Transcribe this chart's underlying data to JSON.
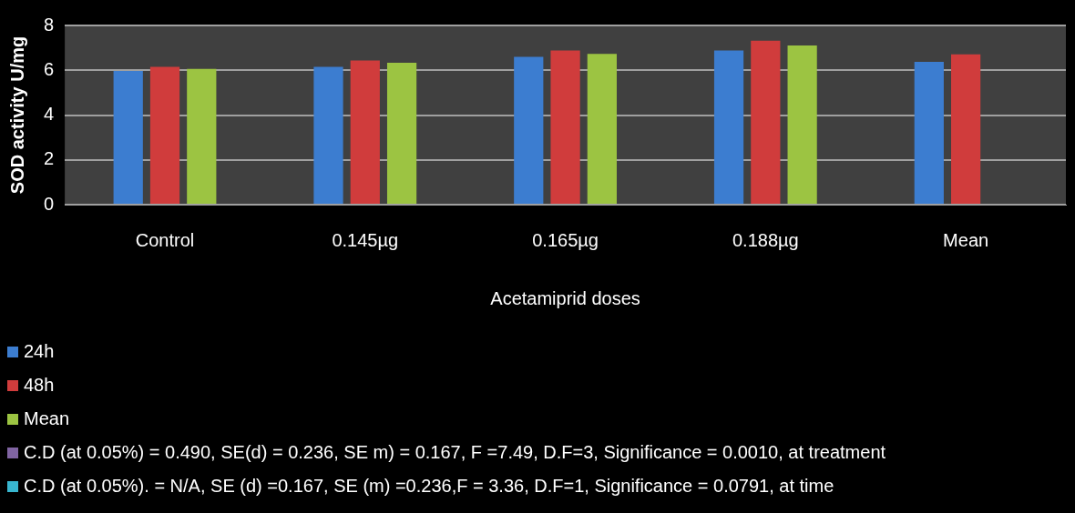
{
  "chart_data": {
    "type": "bar",
    "xlabel": "Acetamiprid doses",
    "ylabel": "SOD activity U/mg",
    "categories": [
      "Control",
      "0.145µg",
      "0.165µg",
      "0.188µg",
      "Mean"
    ],
    "ylim": [
      0,
      8
    ],
    "yticks": [
      0,
      2,
      4,
      6,
      8
    ],
    "grid": "y",
    "legend": "bottom",
    "series": [
      {
        "name": "24h",
        "color": "#3c7dd0",
        "values": [
          5.97,
          6.15,
          6.6,
          6.88,
          6.38
        ]
      },
      {
        "name": "48h",
        "color": "#d03c3c",
        "values": [
          6.15,
          6.44,
          6.88,
          7.32,
          6.71
        ]
      },
      {
        "name": "Mean",
        "color": "#9cc442",
        "values": [
          6.06,
          6.33,
          6.73,
          7.11,
          null
        ]
      },
      {
        "name": "C.D (at 0.05%) = 0.490, SE(d) = 0.236, SE m) = 0.167, F =7.49, D.F=3, Significance = 0.0010, at treatment",
        "color": "#8064a2",
        "values": [
          null,
          null,
          null,
          null,
          null
        ]
      },
      {
        "name": "C.D (at 0.05%). = N/A, SE (d) =0.167, SE (m) =0.236,F = 3.36, D.F=1, Significance = 0.0791, at time",
        "color": "#38b6cf",
        "values": [
          null,
          null,
          null,
          null,
          null
        ]
      }
    ]
  }
}
